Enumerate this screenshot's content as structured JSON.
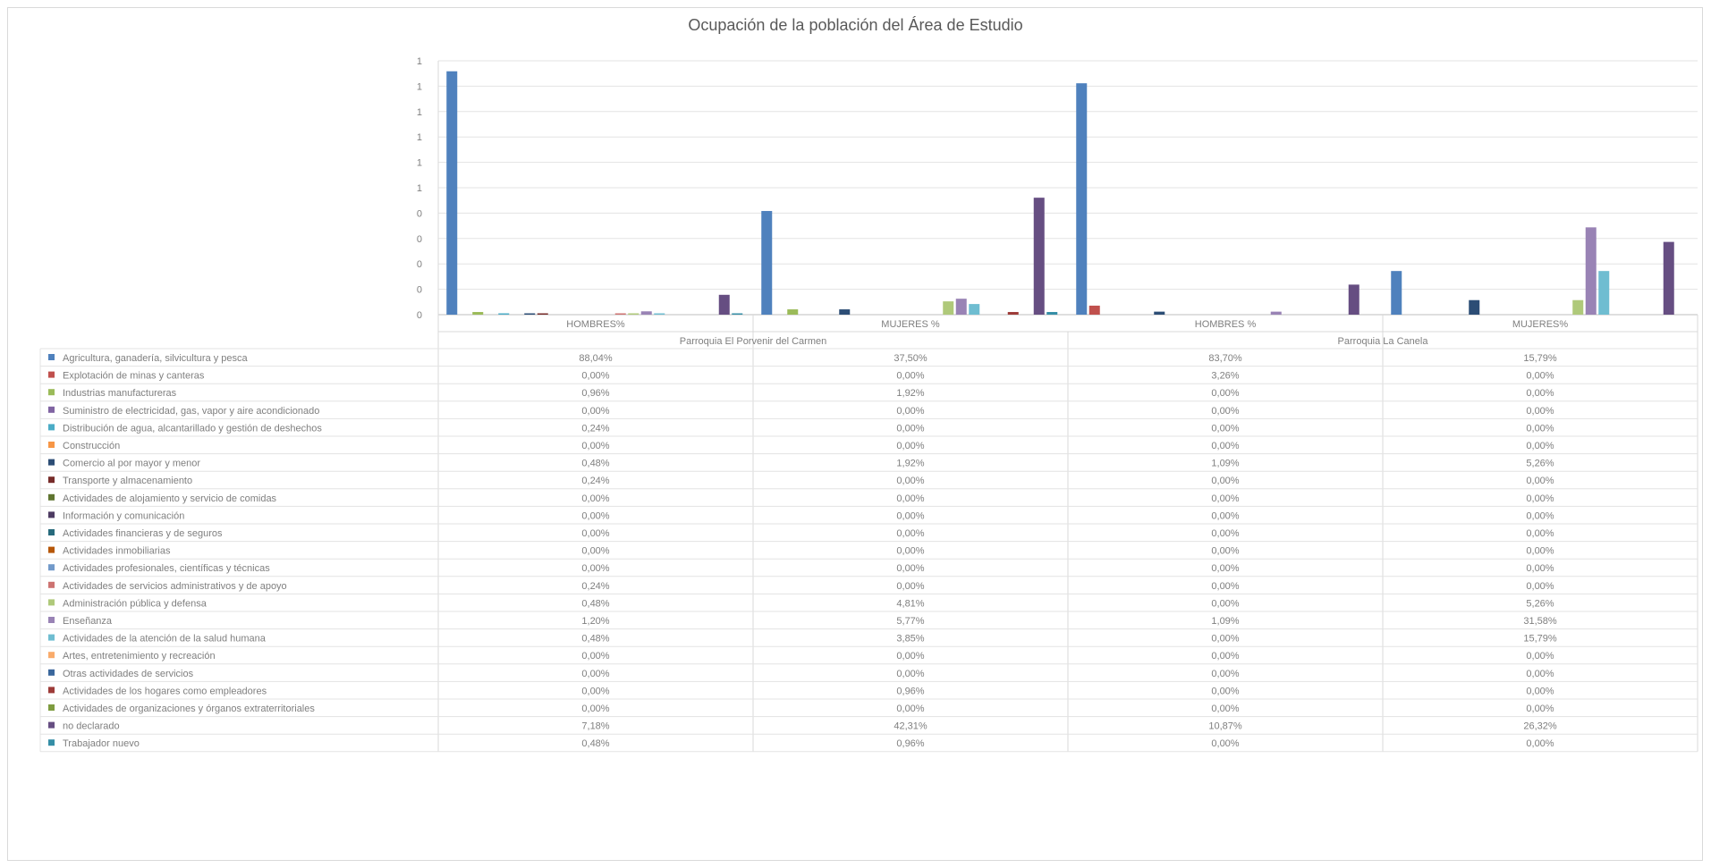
{
  "chart_data": {
    "type": "bar",
    "title": "Ocupación de la población del Área de Estudio",
    "xlabel": "",
    "ylabel": "",
    "y_tick_labels": [
      "0",
      "0",
      "0",
      "0",
      "0",
      "1",
      "1",
      "1",
      "1",
      "1",
      "1"
    ],
    "ylim": [
      0,
      1
    ],
    "grid": true,
    "legend": "data-table",
    "groups": [
      "Parroquia El Porvenir del Carmen",
      "Parroquia La Canela"
    ],
    "categories": [
      "HOMBRES%",
      "MUJERES %",
      "HOMBRES %",
      "MUJERES%"
    ],
    "series": [
      {
        "name": "Agricultura, ganadería, silvicultura y pesca",
        "color": "#4f81bd",
        "values": [
          "88,04%",
          "37,50%",
          "83,70%",
          "15,79%"
        ],
        "numeric": [
          0.8804,
          0.375,
          0.837,
          0.1579
        ]
      },
      {
        "name": "Explotación de minas y canteras",
        "color": "#c0504d",
        "values": [
          "0,00%",
          "0,00%",
          "3,26%",
          "0,00%"
        ],
        "numeric": [
          0,
          0,
          0.0326,
          0
        ]
      },
      {
        "name": "Industrias manufactureras",
        "color": "#9bbb59",
        "values": [
          "0,96%",
          "1,92%",
          "0,00%",
          "0,00%"
        ],
        "numeric": [
          0.0096,
          0.0192,
          0,
          0
        ]
      },
      {
        "name": "Suministro de electricidad, gas, vapor y aire acondicionado",
        "color": "#8064a2",
        "values": [
          "0,00%",
          "0,00%",
          "0,00%",
          "0,00%"
        ],
        "numeric": [
          0,
          0,
          0,
          0
        ]
      },
      {
        "name": "Distribución de agua, alcantarillado y gestión de deshechos",
        "color": "#4bacc6",
        "values": [
          "0,24%",
          "0,00%",
          "0,00%",
          "0,00%"
        ],
        "numeric": [
          0.0024,
          0,
          0,
          0
        ]
      },
      {
        "name": "Construcción",
        "color": "#f79646",
        "values": [
          "0,00%",
          "0,00%",
          "0,00%",
          "0,00%"
        ],
        "numeric": [
          0,
          0,
          0,
          0
        ]
      },
      {
        "name": "Comercio al por mayor y menor",
        "color": "#2c4d75",
        "values": [
          "0,48%",
          "1,92%",
          "1,09%",
          "5,26%"
        ],
        "numeric": [
          0.0048,
          0.0192,
          0.0109,
          0.0526
        ]
      },
      {
        "name": "Transporte y almacenamiento",
        "color": "#772c2a",
        "values": [
          "0,24%",
          "0,00%",
          "0,00%",
          "0,00%"
        ],
        "numeric": [
          0.0024,
          0,
          0,
          0
        ]
      },
      {
        "name": "Actividades de alojamiento y servicio de comidas",
        "color": "#5f7530",
        "values": [
          "0,00%",
          "0,00%",
          "0,00%",
          "0,00%"
        ],
        "numeric": [
          0,
          0,
          0,
          0
        ]
      },
      {
        "name": "Información y comunicación",
        "color": "#4d3b62",
        "values": [
          "0,00%",
          "0,00%",
          "0,00%",
          "0,00%"
        ],
        "numeric": [
          0,
          0,
          0,
          0
        ]
      },
      {
        "name": "Actividades financieras y de seguros",
        "color": "#276a7c",
        "values": [
          "0,00%",
          "0,00%",
          "0,00%",
          "0,00%"
        ],
        "numeric": [
          0,
          0,
          0,
          0
        ]
      },
      {
        "name": "Actividades inmobiliarias",
        "color": "#b65708",
        "values": [
          "0,00%",
          "0,00%",
          "0,00%",
          "0,00%"
        ],
        "numeric": [
          0,
          0,
          0,
          0
        ]
      },
      {
        "name": "Actividades profesionales, científicas y técnicas",
        "color": "#729aca",
        "values": [
          "0,00%",
          "0,00%",
          "0,00%",
          "0,00%"
        ],
        "numeric": [
          0,
          0,
          0,
          0
        ]
      },
      {
        "name": "Actividades de servicios administrativos y de apoyo",
        "color": "#cd7371",
        "values": [
          "0,24%",
          "0,00%",
          "0,00%",
          "0,00%"
        ],
        "numeric": [
          0.0024,
          0,
          0,
          0
        ]
      },
      {
        "name": "Administración pública y defensa",
        "color": "#afc97a",
        "values": [
          "0,48%",
          "4,81%",
          "0,00%",
          "5,26%"
        ],
        "numeric": [
          0.0048,
          0.0481,
          0,
          0.0526
        ]
      },
      {
        "name": "Enseñanza",
        "color": "#9983b5",
        "values": [
          "1,20%",
          "5,77%",
          "1,09%",
          "31,58%"
        ],
        "numeric": [
          0.012,
          0.0577,
          0.0109,
          0.3158
        ]
      },
      {
        "name": "Actividades de la atención de la salud humana",
        "color": "#6fbdd1",
        "values": [
          "0,48%",
          "3,85%",
          "0,00%",
          "15,79%"
        ],
        "numeric": [
          0.0048,
          0.0385,
          0,
          0.1579
        ]
      },
      {
        "name": "Artes, entretenimiento y recreación",
        "color": "#f9ab6b",
        "values": [
          "0,00%",
          "0,00%",
          "0,00%",
          "0,00%"
        ],
        "numeric": [
          0,
          0,
          0,
          0
        ]
      },
      {
        "name": "Otras actividades de servicios",
        "color": "#3a679c",
        "values": [
          "0,00%",
          "0,00%",
          "0,00%",
          "0,00%"
        ],
        "numeric": [
          0,
          0,
          0,
          0
        ]
      },
      {
        "name": "Actividades de los hogares como empleadores",
        "color": "#9d3b38",
        "values": [
          "0,00%",
          "0,96%",
          "0,00%",
          "0,00%"
        ],
        "numeric": [
          0,
          0.0096,
          0,
          0
        ]
      },
      {
        "name": "Actividades de organizaciones y órganos extraterritoriales",
        "color": "#7e9c40",
        "values": [
          "0,00%",
          "0,00%",
          "0,00%",
          "0,00%"
        ],
        "numeric": [
          0,
          0,
          0,
          0
        ]
      },
      {
        "name": "no declarado",
        "color": "#664e82",
        "values": [
          "7,18%",
          "42,31%",
          "10,87%",
          "26,32%"
        ],
        "numeric": [
          0.0718,
          0.4231,
          0.1087,
          0.2632
        ]
      },
      {
        "name": "Trabajador nuevo",
        "color": "#358ea6",
        "values": [
          "0,48%",
          "0,96%",
          "0,00%",
          "0,00%"
        ],
        "numeric": [
          0.0048,
          0.0096,
          0,
          0
        ]
      }
    ]
  }
}
